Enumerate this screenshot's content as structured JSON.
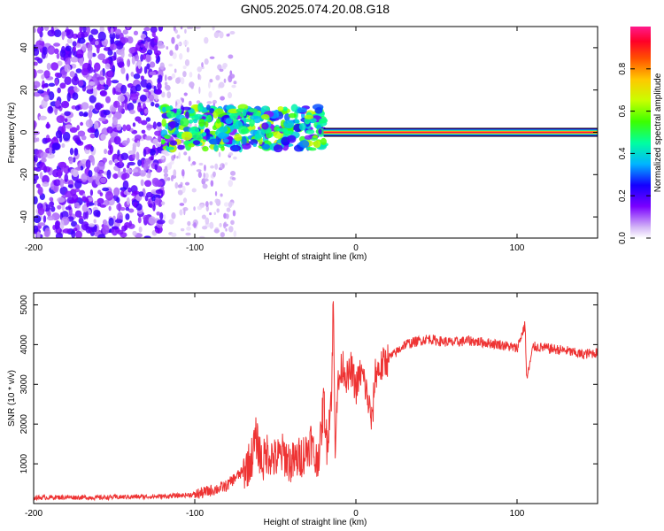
{
  "title": "GN05.2025.074.20.08.G18",
  "chart_data": [
    {
      "type": "heatmap",
      "xlabel": "Height of straight line (km)",
      "ylabel": "Frequency (Hz)",
      "xlim": [
        -200,
        150
      ],
      "ylim": [
        -50,
        50
      ],
      "x_ticks": [
        -200,
        -100,
        0,
        100
      ],
      "y_ticks": [
        -40,
        -20,
        0,
        20,
        40
      ],
      "colorbar": {
        "label": "Normalized spectral amplitude",
        "range": [
          0,
          1
        ],
        "ticks": [
          "0.0",
          "0.2",
          "0.4",
          "0.6",
          "0.8"
        ],
        "colormap": "rainbow"
      },
      "regions": [
        {
          "x_range": [
            -200,
            -120
          ],
          "y_range": [
            -50,
            50
          ],
          "amplitude": 0.15,
          "pattern": "scattered noise"
        },
        {
          "x_range": [
            -120,
            -75
          ],
          "y_range": [
            -50,
            50
          ],
          "amplitude": 0.06,
          "pattern": "sparse faint noise"
        },
        {
          "x_range": [
            -120,
            -20
          ],
          "y_range": [
            -8,
            12
          ],
          "amplitude": 0.45,
          "pattern": "signal band"
        },
        {
          "x_range": [
            -20,
            150
          ],
          "y_range": [
            -1.5,
            1.5
          ],
          "amplitude": 0.95,
          "pattern": "tone line at 0 Hz"
        }
      ]
    },
    {
      "type": "line",
      "xlabel": "Height of straight line (km)",
      "ylabel": "SNR (10 * v/v)",
      "xlim": [
        -200,
        150
      ],
      "ylim": [
        0,
        5300
      ],
      "x_ticks": [
        -200,
        -100,
        0,
        100
      ],
      "y_ticks": [
        1000,
        2000,
        3000,
        4000,
        5000
      ],
      "color": "#ee3333",
      "series": [
        {
          "x": [
            -200,
            -180,
            -160,
            -140,
            -120,
            -110,
            -100,
            -95,
            -90,
            -85,
            -80,
            -75,
            -70,
            -65,
            -62,
            -58,
            -55,
            -50,
            -45,
            -40,
            -35,
            -30,
            -28,
            -25,
            -22,
            -20,
            -18,
            -15,
            -14,
            -13,
            -12,
            -10,
            -8,
            -5,
            -3,
            0,
            3,
            5,
            8,
            10,
            12,
            15,
            18,
            20,
            25,
            30,
            35,
            40,
            45,
            50,
            60,
            70,
            80,
            90,
            100,
            105,
            106,
            110,
            120,
            130,
            140,
            150
          ],
          "y": [
            150,
            160,
            150,
            170,
            180,
            200,
            230,
            270,
            330,
            380,
            450,
            650,
            800,
            1100,
            1650,
            1000,
            1300,
            1100,
            1250,
            1000,
            1150,
            1350,
            1600,
            1000,
            1500,
            2600,
            1500,
            2900,
            5200,
            1400,
            2600,
            3200,
            3500,
            3100,
            3400,
            2900,
            3300,
            3100,
            2500,
            2000,
            3300,
            3400,
            3550,
            3650,
            3800,
            4000,
            4050,
            4100,
            4150,
            4100,
            4050,
            4100,
            4050,
            4000,
            3900,
            4500,
            3100,
            3950,
            3900,
            3850,
            3750,
            3800
          ]
        }
      ]
    }
  ]
}
